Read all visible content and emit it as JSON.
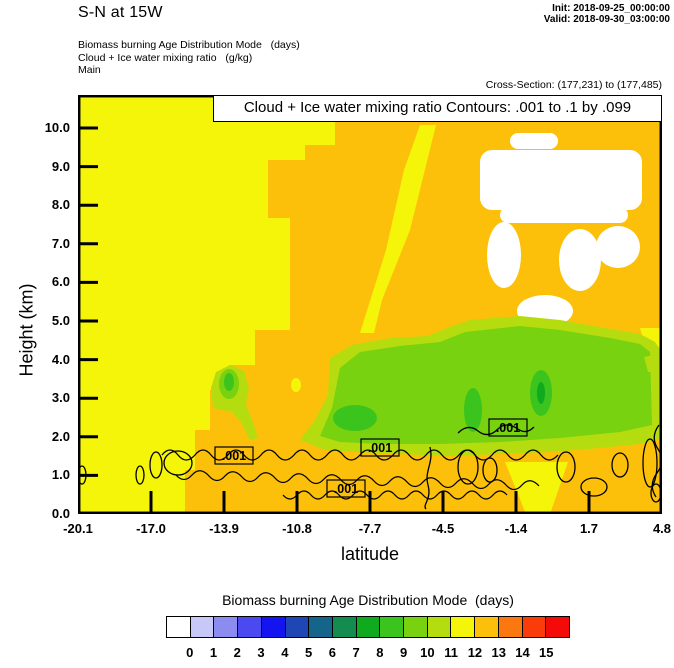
{
  "header": {
    "title": "S-N at 15W",
    "init_label": "Init: 2018-09-25_00:00:00",
    "valid_label": "Valid: 2018-09-30_03:00:00",
    "field_line_1": "Biomass burning Age Distribution Mode   (days)",
    "field_line_2": "Cloud + Ice water mixing ratio   (g/kg)",
    "field_line_3": "Main",
    "cross_section": "Cross-Section: (177,231) to (177,485)"
  },
  "plot": {
    "title": "Cloud + Ice water mixing ratio Contours: .001 to .1 by .099",
    "xlabel": "latitude",
    "ylabel": "Height (km)",
    "x_ticks": [
      "-20.1",
      "-17.0",
      "-13.9",
      "-10.8",
      "-7.7",
      "-4.5",
      "-1.4",
      "1.7",
      "4.8"
    ],
    "y_ticks_top_down": [
      "10.0",
      "9.0",
      "8.0",
      "7.0",
      "6.0",
      "5.0",
      "4.0",
      "3.0",
      "2.0",
      "1.0",
      "0.0"
    ],
    "contour_label": ".001"
  },
  "legend": {
    "title": "Biomass burning Age Distribution Mode  (days)",
    "tick_labels": [
      "0",
      "1",
      "2",
      "3",
      "4",
      "5",
      "6",
      "7",
      "8",
      "9",
      "10",
      "11",
      "12",
      "13",
      "14",
      "15"
    ],
    "colors": [
      "#FFFFFF",
      "#C8C8F8",
      "#8C8CF0",
      "#4A4AF0",
      "#1414F0",
      "#1E46B4",
      "#14648C",
      "#148C50",
      "#0FAA1E",
      "#3CC41E",
      "#78D20F",
      "#B4DC0F",
      "#F5F50A",
      "#FCC00A",
      "#FA780F",
      "#FA3C0A",
      "#F50A0A"
    ]
  },
  "map_colors": {
    "yellow": "#F5F50A",
    "amber": "#FCC00A",
    "chartreuse": "#B4DC0F",
    "yellow_green": "#78D20F",
    "green": "#3CC41E",
    "dark_green": "#0FAA1E",
    "white": "#FFFFFF",
    "contour": "#000000",
    "frame": "#000000"
  },
  "chart_data": {
    "type": "heatmap",
    "title": "Cloud + Ice water mixing ratio Contours: .001 to .1 by .099",
    "subtitle": "S-N at 15W vertical cross-section, (177,231) to (177,485)",
    "xlabel": "latitude",
    "ylabel": "Height (km)",
    "xlim": [
      -20.1,
      4.8
    ],
    "ylim": [
      0.0,
      10.9
    ],
    "x_ticks": [
      -20.1,
      -17.0,
      -13.9,
      -10.8,
      -7.7,
      -4.5,
      -1.4,
      1.7,
      4.8
    ],
    "y_ticks": [
      0,
      1,
      2,
      3,
      4,
      5,
      6,
      7,
      8,
      9,
      10
    ],
    "grid": false,
    "legend_position": "bottom",
    "fill_field": {
      "name": "Biomass burning Age Distribution Mode",
      "units": "days",
      "boundary_values": [
        0,
        1,
        2,
        3,
        4,
        5,
        6,
        7,
        8,
        9,
        10,
        11,
        12,
        13,
        14,
        15
      ],
      "cell_colors": [
        "#FFFFFF",
        "#C8C8F8",
        "#8C8CF0",
        "#4A4AF0",
        "#1414F0",
        "#1E46B4",
        "#14648C",
        "#148C50",
        "#0FAA1E",
        "#3CC41E",
        "#78D20F",
        "#B4DC0F",
        "#F5F50A",
        "#FCC00A",
        "#FA780F",
        "#FA3C0A",
        "#F50A0A"
      ]
    },
    "contour_field": {
      "name": "Cloud + Ice water mixing ratio",
      "units": "g/kg",
      "levels": [
        0.001,
        0.1
      ],
      "drawn_level_label": ".001"
    },
    "filled_regions": [
      {
        "value_days": "12-13 (yellow)",
        "extent": "entire southern part of section, lat -20.1 to about -13, all heights 0-10.9 km; also wedge aloft lat -13 to -8 above ~4 km and small patch near lat -0.5 at 0.5-1.5 km"
      },
      {
        "value_days": "13-14 (orange)",
        "extent": "northern part above ~3.5 km from lat -12 to 4.8, and below ~1.7 km from lat -15.5 northward to 4.8"
      },
      {
        "value_days": "<0 (white, cloud)",
        "extent": "blobs between 6.5 and 9.5 km from lat -3.5 to 1.5"
      },
      {
        "value_days": "10-12 (yellow-green layer)",
        "extent": "elongated layer 1.8-3.6 km from lat -9.5 to 4.8 plus small plume near lat -13.5 at 2.4-3.5 km"
      },
      {
        "value_days": "8-10 (green cores)",
        "extent": "pockets near lat -4.4 and -1.5 at 2.3-3.3 km and near lat -13.5 at 2.8-3.3 km"
      }
    ],
    "contour_labels": [
      {
        "text": ".001",
        "lat": -13.5,
        "height_km": 1.5
      },
      {
        "text": ".001",
        "lat": -7.2,
        "height_km": 1.7
      },
      {
        "text": ".001",
        "lat": -8.7,
        "height_km": 0.7
      },
      {
        "text": ".001",
        "lat": -1.8,
        "height_km": 2.3
      }
    ]
  }
}
